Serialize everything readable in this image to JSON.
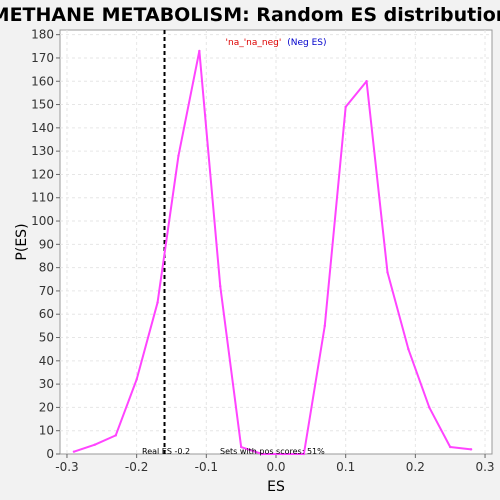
{
  "chart_data": {
    "type": "line",
    "title": "METHANE METABOLISM: Random ES distribution",
    "xlabel": "ES",
    "ylabel": "P(ES)",
    "xlim": [
      -0.31,
      0.31
    ],
    "ylim": [
      0,
      182
    ],
    "xticks": [
      -0.3,
      -0.2,
      -0.1,
      0.0,
      0.1,
      0.2,
      0.3
    ],
    "xtick_labels": [
      "-0.3",
      "-0.2",
      "-0.1",
      "0.0",
      "0.1",
      "0.2",
      "0.3"
    ],
    "yticks": [
      0,
      10,
      20,
      30,
      40,
      50,
      60,
      70,
      80,
      90,
      100,
      110,
      120,
      130,
      140,
      150,
      160,
      170,
      180
    ],
    "grid": true,
    "series": [
      {
        "name": "",
        "color": "#ff44ff",
        "x": [
          -0.29,
          -0.26,
          -0.23,
          -0.2,
          -0.17,
          -0.14,
          -0.11,
          -0.08,
          -0.05,
          -0.02,
          0.01,
          0.04,
          0.07,
          0.1,
          0.13,
          0.16,
          0.19,
          0.22,
          0.25,
          0.28
        ],
        "y": [
          1,
          4,
          8,
          32,
          65,
          128,
          173,
          72,
          3,
          0,
          0,
          0,
          55,
          149,
          160,
          78,
          45,
          20,
          3,
          2
        ]
      }
    ],
    "vline": {
      "x": -0.16,
      "style": "dashed",
      "color": "#000000"
    },
    "annotations": {
      "legend_name": "'na_'na_neg'",
      "legend_suffix": "(Neg ES)",
      "real_es": "Real ES -0.2",
      "pos_scores": "Sets with pos scores: 51%"
    },
    "colors": {
      "background": "#f2f2f2",
      "plot_bg": "#ffffff",
      "grid": "#e6e6e6",
      "legend_name": "#dd0000",
      "legend_suffix": "#0000cc"
    }
  }
}
